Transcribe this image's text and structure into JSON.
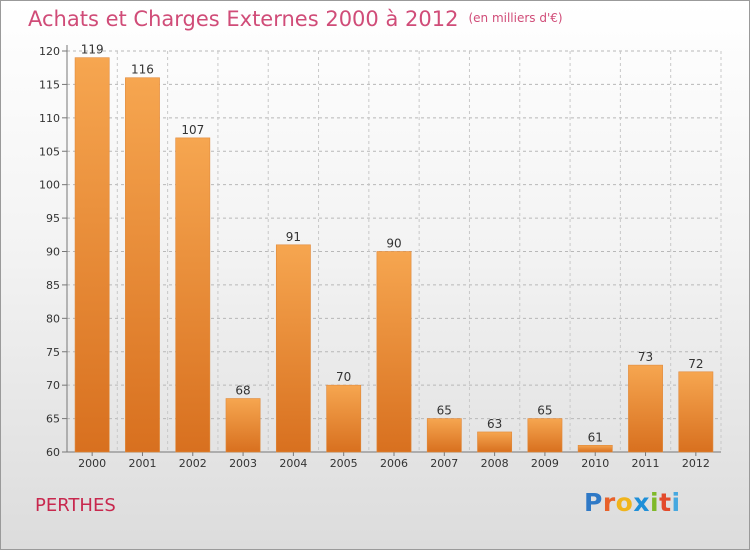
{
  "title": "Achats et Charges Externes 2000 à 2012",
  "subtitle": "(en milliers d'€)",
  "commune": "PERTHES",
  "logo": [
    "P",
    "r",
    "o",
    "x",
    "i",
    "t",
    "i"
  ],
  "colors": {
    "bar_light": "#f6a04c",
    "bar_dark": "#dc7424",
    "title": "#d04c78",
    "commune": "#c8284e"
  },
  "chart_data": {
    "type": "bar",
    "title": "Achats et Charges Externes 2000 à 2012",
    "subtitle": "(en milliers d'€)",
    "categories": [
      "2000",
      "2001",
      "2002",
      "2003",
      "2004",
      "2005",
      "2006",
      "2007",
      "2008",
      "2009",
      "2010",
      "2011",
      "2012"
    ],
    "values": [
      119,
      116,
      107,
      68,
      91,
      70,
      90,
      65,
      63,
      65,
      61,
      73,
      72
    ],
    "ylim": [
      60,
      120
    ],
    "yticks": [
      60,
      65,
      70,
      75,
      80,
      85,
      90,
      95,
      100,
      105,
      110,
      115,
      120
    ],
    "grid": "horizontal dashed",
    "data_labels": true
  }
}
